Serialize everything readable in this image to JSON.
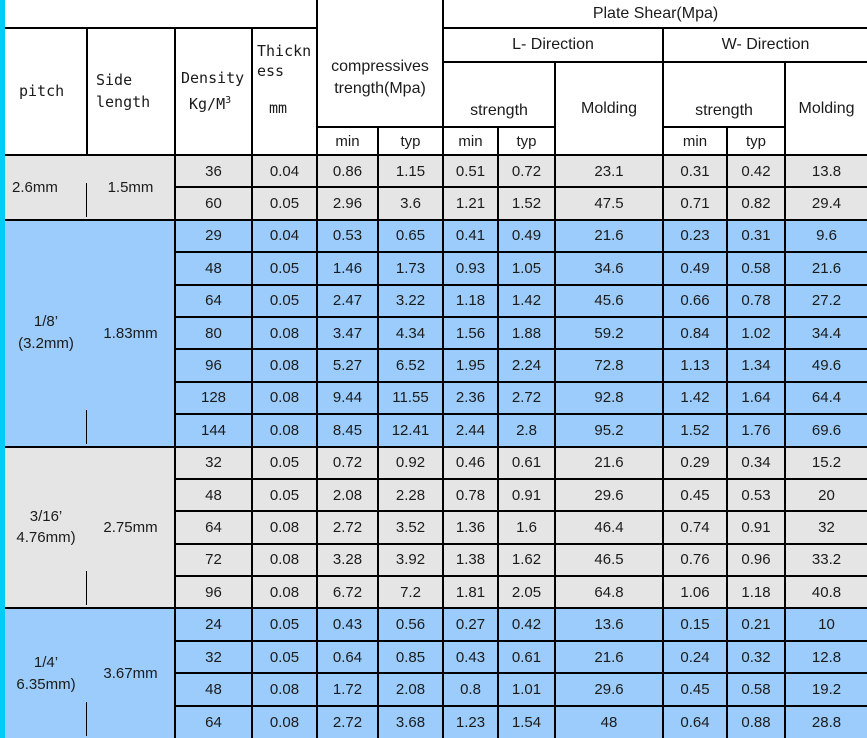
{
  "colors": {
    "accent_strip": "#00ccf7",
    "row_gray": "#e5e5e5",
    "row_blue": "#9bccfb",
    "border": "#000000"
  },
  "header": {
    "pitch": "pitch",
    "side_length": "Side length",
    "density_label": "Density",
    "density_unit_base": "Kg/M",
    "density_unit_exponent": "3",
    "thickness_label": "Thickness",
    "thickness_unit": "mm",
    "compressive_line1": "compressives",
    "compressive_line2": "trength(Mpa)",
    "plate_shear": "Plate Shear(Mpa)",
    "l_direction": "L- Direction",
    "w_direction": "W- Direction",
    "strength": "strength",
    "molding": "Molding",
    "min": "min",
    "typ": "typ"
  },
  "columns_order": [
    "density",
    "thickness",
    "comp_min",
    "comp_typ",
    "l_min",
    "l_typ",
    "l_molding",
    "w_min",
    "w_typ",
    "w_molding"
  ],
  "groups": [
    {
      "pitch": "2.6mm",
      "pitch_line2": "",
      "side_length": "1.5mm",
      "shade": "gray",
      "rows": [
        [
          "36",
          "0.04",
          "0.86",
          "1.15",
          "0.51",
          "0.72",
          "23.1",
          "0.31",
          "0.42",
          "13.8"
        ],
        [
          "60",
          "0.05",
          "2.96",
          "3.6",
          "1.21",
          "1.52",
          "47.5",
          "0.71",
          "0.82",
          "29.4"
        ]
      ]
    },
    {
      "pitch": "1/8’",
      "pitch_line2": "(3.2mm)",
      "side_length": "1.83mm",
      "shade": "blue",
      "rows": [
        [
          "29",
          "0.04",
          "0.53",
          "0.65",
          "0.41",
          "0.49",
          "21.6",
          "0.23",
          "0.31",
          "9.6"
        ],
        [
          "48",
          "0.05",
          "1.46",
          "1.73",
          "0.93",
          "1.05",
          "34.6",
          "0.49",
          "0.58",
          "21.6"
        ],
        [
          "64",
          "0.05",
          "2.47",
          "3.22",
          "1.18",
          "1.42",
          "45.6",
          "0.66",
          "0.78",
          "27.2"
        ],
        [
          "80",
          "0.08",
          "3.47",
          "4.34",
          "1.56",
          "1.88",
          "59.2",
          "0.84",
          "1.02",
          "34.4"
        ],
        [
          "96",
          "0.08",
          "5.27",
          "6.52",
          "1.95",
          "2.24",
          "72.8",
          "1.13",
          "1.34",
          "49.6"
        ],
        [
          "128",
          "0.08",
          "9.44",
          "11.55",
          "2.36",
          "2.72",
          "92.8",
          "1.42",
          "1.64",
          "64.4"
        ],
        [
          "144",
          "0.08",
          "8.45",
          "12.41",
          "2.44",
          "2.8",
          "95.2",
          "1.52",
          "1.76",
          "69.6"
        ]
      ]
    },
    {
      "pitch": "3/16’",
      "pitch_line2": "4.76mm)",
      "side_length": "2.75mm",
      "shade": "gray",
      "rows": [
        [
          "32",
          "0.05",
          "0.72",
          "0.92",
          "0.46",
          "0.61",
          "21.6",
          "0.29",
          "0.34",
          "15.2"
        ],
        [
          "48",
          "0.05",
          "2.08",
          "2.28",
          "0.78",
          "0.91",
          "29.6",
          "0.45",
          "0.53",
          "20"
        ],
        [
          "64",
          "0.08",
          "2.72",
          "3.52",
          "1.36",
          "1.6",
          "46.4",
          "0.74",
          "0.91",
          "32"
        ],
        [
          "72",
          "0.08",
          "3.28",
          "3.92",
          "1.38",
          "1.62",
          "46.5",
          "0.76",
          "0.96",
          "33.2"
        ],
        [
          "96",
          "0.08",
          "6.72",
          "7.2",
          "1.81",
          "2.05",
          "64.8",
          "1.06",
          "1.18",
          "40.8"
        ]
      ]
    },
    {
      "pitch": "1/4’",
      "pitch_line2": "6.35mm)",
      "side_length": "3.67mm",
      "shade": "blue",
      "rows": [
        [
          "24",
          "0.05",
          "0.43",
          "0.56",
          "0.27",
          "0.42",
          "13.6",
          "0.15",
          "0.21",
          "10"
        ],
        [
          "32",
          "0.05",
          "0.64",
          "0.85",
          "0.43",
          "0.61",
          "21.6",
          "0.24",
          "0.32",
          "12.8"
        ],
        [
          "48",
          "0.08",
          "1.72",
          "2.08",
          "0.8",
          "1.01",
          "29.6",
          "0.45",
          "0.58",
          "19.2"
        ],
        [
          "64",
          "0.08",
          "2.72",
          "3.68",
          "1.23",
          "1.54",
          "48",
          "0.64",
          "0.88",
          "28.8"
        ]
      ]
    }
  ]
}
